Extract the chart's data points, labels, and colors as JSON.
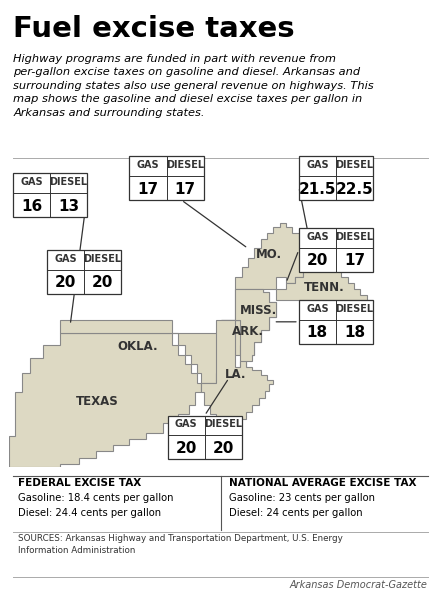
{
  "title": "Fuel excise taxes",
  "subtitle": "Highway programs are funded in part with revenue from\nper-gallon excise taxes on gasoline and diesel. Arkansas and\nsurrounding states also use general revenue on highways. This\nmap shows the gasoline and diesel excise taxes per gallon in\nArkansas and surrounding states.",
  "background_color": "#ffffff",
  "map_fill_color": "#ddd9c3",
  "map_edge_color": "#888888",
  "federal_tax_title": "FEDERAL EXCISE TAX",
  "federal_tax_lines": [
    "Gasoline: 18.4 cents per gallon",
    "Diesel: 24.4 cents per gallon"
  ],
  "national_avg_title": "NATIONAL AVERAGE EXCISE TAX",
  "national_avg_lines": [
    "Gasoline: 23 cents per gallon",
    "Diesel: 24 cents per gallon"
  ],
  "sources_text": "SOURCES: Arkansas Highway and Transportation Department, U.S. Energy\nInformation Administration",
  "credit_text": "Arkansas Democrat-Gazette"
}
